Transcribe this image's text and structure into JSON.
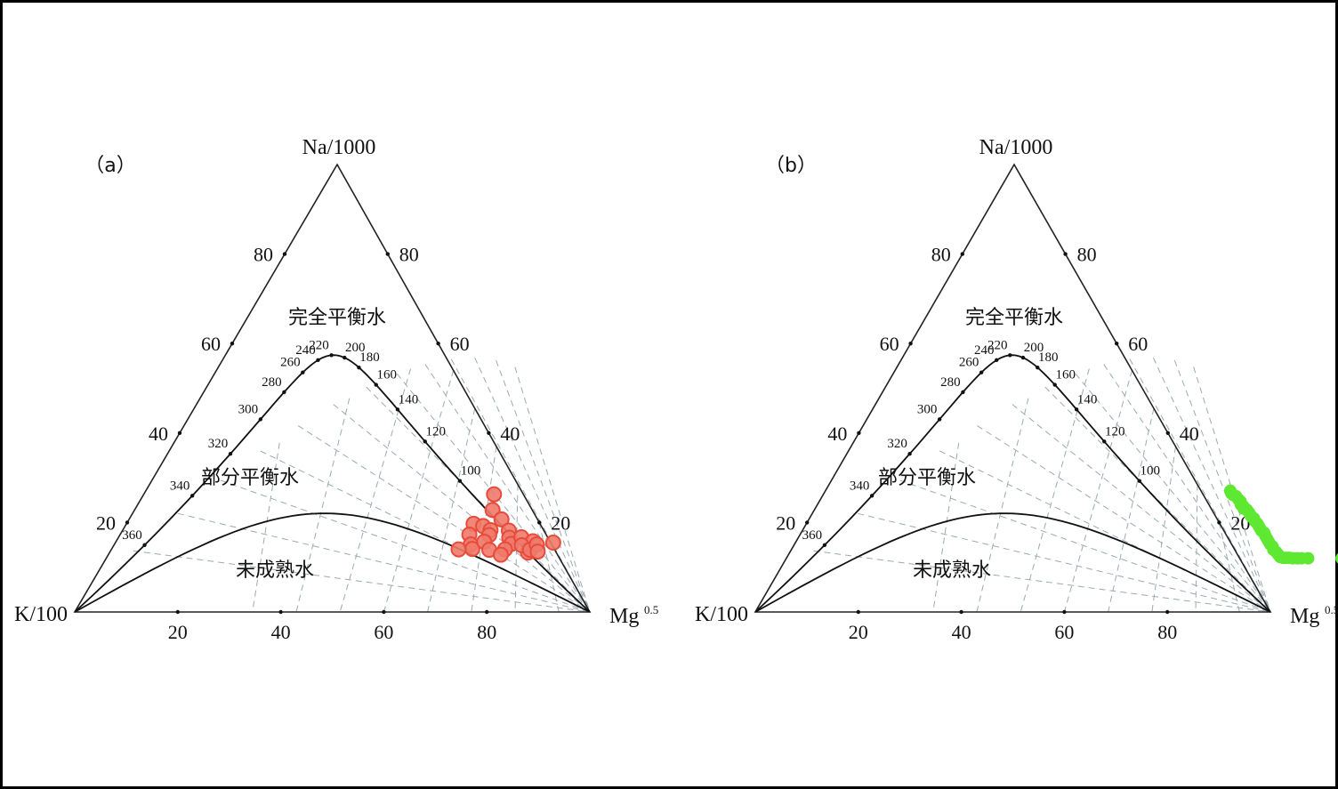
{
  "chart_data": [
    {
      "type": "scatter",
      "chart_kind": "ternary",
      "panel_label": "（a）",
      "apex_labels": {
        "top": "Na/1000",
        "left": "K/100",
        "right_base": "Mg",
        "right_sup": "0.5"
      },
      "ticks": {
        "bottom": [
          "20",
          "40",
          "60",
          "80"
        ],
        "left": [
          "20",
          "40",
          "60",
          "80"
        ],
        "right": [
          "20",
          "40",
          "60",
          "80"
        ]
      },
      "temperature_labels": [
        "360",
        "340",
        "320",
        "300",
        "280",
        "260",
        "240",
        "220",
        "200",
        "180",
        "160",
        "140",
        "120",
        "100"
      ],
      "region_labels": {
        "full": "完全平衡水",
        "partial": "部分平衡水",
        "immature": "未成熟水"
      },
      "marker_color": "#f07a6a",
      "marker_edge": "#e84b3c",
      "points": [
        [
          28.0,
          14.3
        ],
        [
          27.4,
          7.7
        ],
        [
          29.5,
          7.2
        ],
        [
          27.8,
          5.3
        ],
        [
          29.2,
          3.1
        ],
        [
          30.0,
          2.1
        ],
        [
          27.4,
          2.0
        ],
        [
          29.5,
          10.8
        ],
        [
          31.4,
          6.3
        ],
        [
          31.7,
          5.2
        ],
        [
          32.3,
          8.7
        ],
        [
          31.5,
          3.7
        ],
        [
          35.0,
          6.2
        ],
        [
          35.9,
          4.6
        ],
        [
          33.4,
          1.9
        ],
        [
          37.0,
          3.2
        ],
        [
          36.4,
          2.0
        ],
        [
          36.2,
          0.8
        ],
        [
          38.2,
          4.7
        ],
        [
          41.2,
          1.3
        ],
        [
          40.9,
          3.8
        ],
        [
          39.2,
          2.9
        ],
        [
          41.3,
          1.9
        ],
        [
          42.0,
          3.1
        ],
        [
          43.0,
          1.5
        ],
        [
          45.0,
          3.5
        ]
      ]
    },
    {
      "type": "scatter",
      "chart_kind": "ternary",
      "panel_label": "（b）",
      "apex_labels": {
        "top": "Na/1000",
        "left": "K/100",
        "right_base": "Mg",
        "right_sup": "0.5"
      },
      "ticks": {
        "bottom": [
          "20",
          "40",
          "60",
          "80"
        ],
        "left": [
          "20",
          "40",
          "60",
          "80"
        ],
        "right": [
          "20",
          "40",
          "60",
          "80"
        ]
      },
      "temperature_labels": [
        "360",
        "340",
        "320",
        "300",
        "280",
        "260",
        "240",
        "220",
        "200",
        "180",
        "160",
        "140",
        "120",
        "100"
      ],
      "region_labels": {
        "full": "完全平衡水",
        "partial": "部分平衡水",
        "immature": "未成熟水"
      },
      "marker_color": "#5ee832",
      "marker_edge": "#5ee832",
      "points": [
        [
          38.6,
          15.1
        ],
        [
          39.1,
          14.5
        ],
        [
          39.7,
          14.1
        ],
        [
          40.3,
          13.9
        ],
        [
          41.1,
          13.2
        ],
        [
          41.8,
          12.7
        ],
        [
          42.2,
          12.0
        ],
        [
          42.8,
          11.7
        ],
        [
          43.2,
          11.1
        ],
        [
          43.9,
          10.9
        ],
        [
          44.6,
          10.3
        ],
        [
          45.1,
          9.8
        ],
        [
          45.6,
          9.3
        ],
        [
          46.3,
          8.9
        ],
        [
          46.8,
          8.3
        ],
        [
          47.5,
          7.8
        ],
        [
          48.1,
          7.2
        ],
        [
          48.6,
          6.7
        ],
        [
          49.2,
          6.1
        ],
        [
          49.9,
          5.7
        ],
        [
          50.4,
          5.1
        ],
        [
          51.1,
          4.4
        ],
        [
          51.7,
          3.8
        ],
        [
          52.4,
          3.1
        ],
        [
          53.1,
          2.6
        ],
        [
          53.6,
          1.9
        ],
        [
          54.4,
          1.4
        ],
        [
          55.0,
          0.9
        ],
        [
          55.7,
          0.3
        ],
        [
          56.4,
          0.1
        ],
        [
          57.0,
          0.1
        ],
        [
          57.6,
          0.1
        ],
        [
          58.3,
          0.0
        ],
        [
          59.2,
          0.0
        ],
        [
          60.0,
          0.0
        ],
        [
          61.3,
          0.0
        ],
        [
          67.8,
          0.0
        ]
      ]
    }
  ]
}
